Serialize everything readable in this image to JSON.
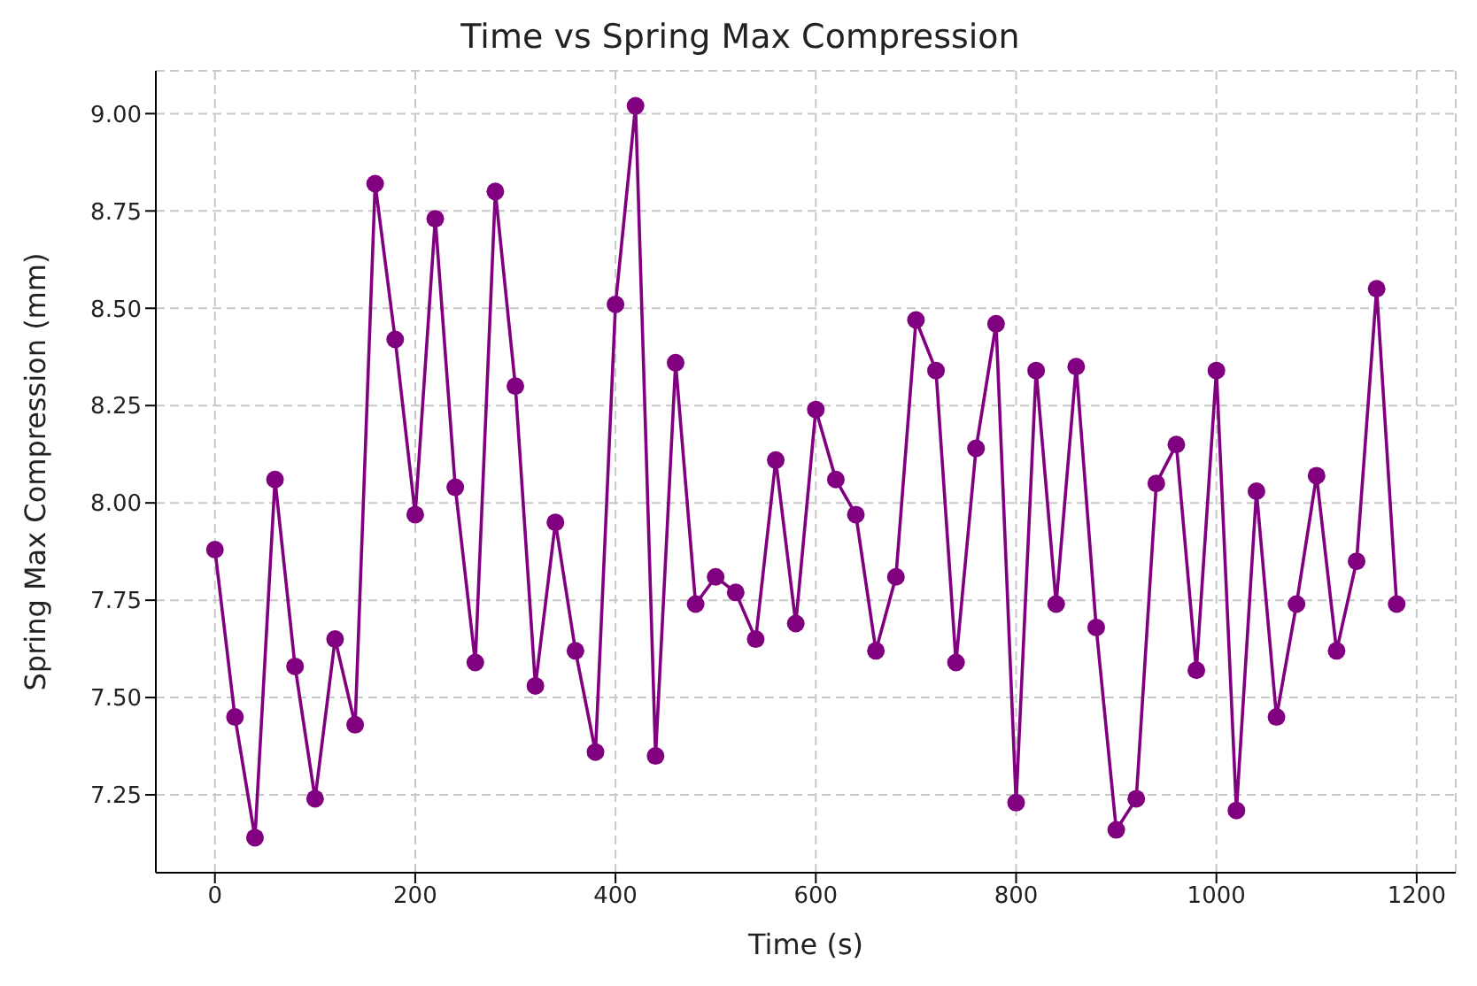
{
  "chart_data": {
    "type": "line",
    "title": "Time vs Spring Max Compression",
    "xlabel": "Time (s)",
    "ylabel": "Spring Max Compression (mm)",
    "x": [
      0,
      20,
      40,
      60,
      80,
      100,
      120,
      140,
      160,
      180,
      200,
      220,
      240,
      260,
      280,
      300,
      320,
      340,
      360,
      380,
      400,
      420,
      440,
      460,
      480,
      500,
      520,
      540,
      560,
      580,
      600,
      620,
      640,
      660,
      680,
      700,
      720,
      740,
      760,
      780,
      800,
      820,
      840,
      860,
      880,
      900,
      920,
      940,
      960,
      980,
      1000,
      1020,
      1040,
      1060,
      1080,
      1100,
      1120,
      1140,
      1160,
      1180
    ],
    "series": [
      {
        "color": "#800080",
        "values": [
          7.88,
          7.45,
          7.14,
          8.06,
          7.58,
          7.24,
          7.65,
          7.43,
          8.82,
          8.42,
          7.97,
          8.73,
          8.04,
          7.59,
          8.8,
          8.3,
          7.53,
          7.95,
          7.62,
          7.36,
          8.51,
          9.02,
          7.35,
          8.36,
          7.74,
          7.81,
          7.77,
          7.65,
          8.11,
          7.69,
          8.24,
          8.06,
          7.97,
          7.62,
          7.81,
          8.47,
          8.34,
          7.59,
          8.14,
          8.46,
          7.23,
          8.34,
          7.74,
          8.35,
          7.68,
          7.16,
          7.24,
          8.05,
          8.15,
          7.57,
          8.34,
          7.21,
          8.03,
          7.45,
          7.74,
          8.07,
          7.62,
          7.85,
          8.55,
          7.74
        ]
      }
    ],
    "xlim": [
      -59,
      1239
    ],
    "xticks": [
      0,
      200,
      400,
      600,
      800,
      1000,
      1200
    ],
    "ylim": [
      7.05,
      9.11
    ],
    "yticks": [
      7.25,
      {
        "value": 7.5,
        "label": "7.50"
      },
      7.75,
      {
        "value": 8,
        "label": "8.00"
      },
      8.25,
      {
        "value": 8.5,
        "label": "8.50"
      },
      8.75,
      {
        "value": 9,
        "label": "9.00"
      }
    ],
    "grid": true,
    "marker": "circle",
    "line_style": "solid",
    "legend": false
  }
}
